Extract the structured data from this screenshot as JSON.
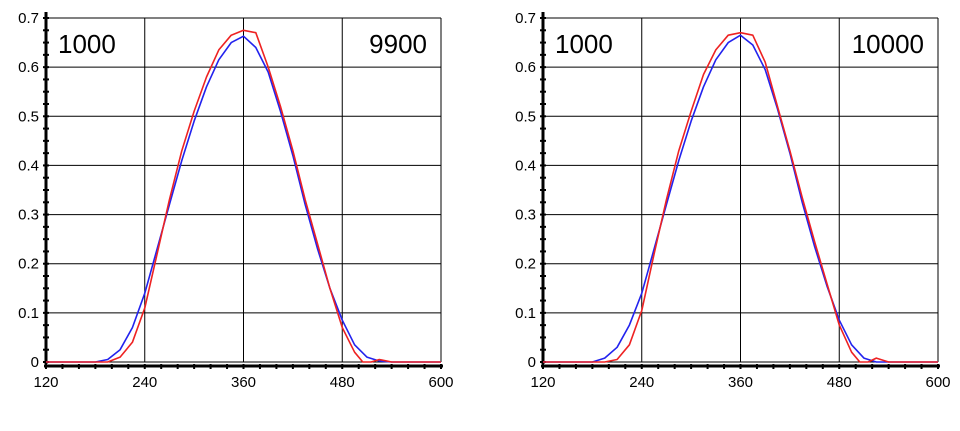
{
  "chart_data": [
    {
      "type": "line",
      "title": "",
      "xlabel": "",
      "ylabel": "",
      "xlim": [
        120,
        600
      ],
      "ylim": [
        0,
        0.7
      ],
      "grid": true,
      "x_ticks": [
        "120",
        "240",
        "360",
        "480",
        "600"
      ],
      "y_ticks": [
        "0",
        "0.1",
        "0.2",
        "0.3",
        "0.4",
        "0.5",
        "0.6",
        "0.7"
      ],
      "annotations": {
        "left": "1000",
        "right": "9900"
      },
      "series": [
        {
          "color": "#2222ee",
          "x": [
            120,
            150,
            180,
            195,
            210,
            225,
            240,
            255,
            270,
            285,
            300,
            315,
            330,
            345,
            360,
            375,
            390,
            405,
            420,
            435,
            450,
            465,
            480,
            495,
            510,
            525,
            540,
            560,
            580,
            600
          ],
          "y": [
            0,
            0,
            0,
            0.005,
            0.025,
            0.07,
            0.14,
            0.23,
            0.32,
            0.41,
            0.49,
            0.56,
            0.615,
            0.65,
            0.663,
            0.64,
            0.59,
            0.51,
            0.42,
            0.32,
            0.23,
            0.15,
            0.085,
            0.035,
            0.01,
            0.002,
            0,
            0,
            0,
            0
          ]
        },
        {
          "color": "#ee2222",
          "x": [
            120,
            150,
            180,
            195,
            210,
            225,
            240,
            255,
            270,
            285,
            300,
            315,
            330,
            345,
            360,
            375,
            390,
            405,
            420,
            435,
            450,
            465,
            480,
            495,
            505,
            515,
            525,
            540,
            560,
            580,
            600
          ],
          "y": [
            0,
            0,
            0,
            0,
            0.01,
            0.04,
            0.11,
            0.22,
            0.33,
            0.43,
            0.51,
            0.58,
            0.635,
            0.665,
            0.675,
            0.67,
            0.6,
            0.52,
            0.43,
            0.33,
            0.24,
            0.15,
            0.07,
            0.02,
            0,
            0,
            0.005,
            0,
            0,
            0,
            0
          ]
        }
      ]
    },
    {
      "type": "line",
      "title": "",
      "xlabel": "",
      "ylabel": "",
      "xlim": [
        120,
        600
      ],
      "ylim": [
        0,
        0.7
      ],
      "grid": true,
      "x_ticks": [
        "120",
        "240",
        "360",
        "480",
        "600"
      ],
      "y_ticks": [
        "0",
        "0.1",
        "0.2",
        "0.3",
        "0.4",
        "0.5",
        "0.6",
        "0.7"
      ],
      "annotations": {
        "left": "1000",
        "right": "10000"
      },
      "series": [
        {
          "color": "#2222ee",
          "x": [
            120,
            150,
            180,
            195,
            210,
            225,
            240,
            255,
            270,
            285,
            300,
            315,
            330,
            345,
            360,
            375,
            390,
            405,
            420,
            435,
            450,
            465,
            480,
            495,
            510,
            525,
            540,
            560,
            580,
            600
          ],
          "y": [
            0,
            0,
            0,
            0.008,
            0.03,
            0.075,
            0.14,
            0.23,
            0.32,
            0.41,
            0.49,
            0.56,
            0.615,
            0.65,
            0.665,
            0.645,
            0.595,
            0.515,
            0.425,
            0.325,
            0.235,
            0.155,
            0.085,
            0.035,
            0.008,
            0,
            0,
            0,
            0,
            0
          ]
        },
        {
          "color": "#ee2222",
          "x": [
            120,
            150,
            180,
            195,
            210,
            225,
            240,
            255,
            270,
            285,
            300,
            315,
            330,
            345,
            360,
            375,
            390,
            405,
            420,
            435,
            450,
            465,
            480,
            495,
            505,
            515,
            525,
            540,
            560,
            580,
            600
          ],
          "y": [
            0,
            0,
            0,
            0,
            0.005,
            0.035,
            0.105,
            0.22,
            0.33,
            0.43,
            0.51,
            0.585,
            0.635,
            0.665,
            0.67,
            0.665,
            0.61,
            0.52,
            0.43,
            0.335,
            0.245,
            0.16,
            0.075,
            0.02,
            0,
            0,
            0.008,
            0,
            0,
            0,
            0
          ]
        }
      ]
    }
  ]
}
